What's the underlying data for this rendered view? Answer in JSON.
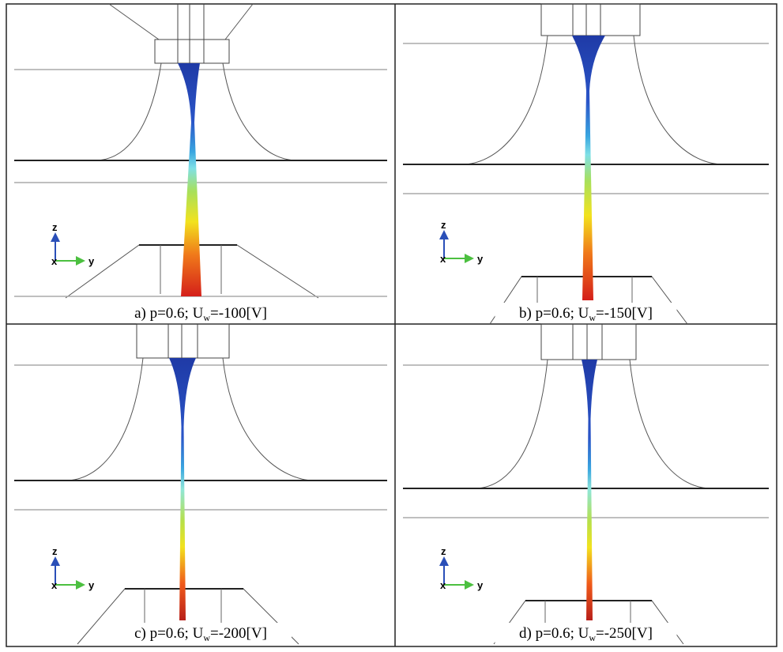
{
  "panels": [
    {
      "caption": {
        "prefix": "a) p=0.6; U",
        "sub": "w",
        "suffix": "=-100[V]"
      },
      "axes": {
        "z": "z",
        "x": "x",
        "y": "y"
      }
    },
    {
      "caption": {
        "prefix": "b) p=0.6; U",
        "sub": "w",
        "suffix": "=-150[V]"
      },
      "axes": {
        "z": "z",
        "x": "x",
        "y": "y"
      }
    },
    {
      "caption": {
        "prefix": "c) p=0.6; U",
        "sub": "w",
        "suffix": "=-200[V]"
      },
      "axes": {
        "z": "z",
        "x": "x",
        "y": "y"
      }
    },
    {
      "caption": {
        "prefix": "d) p=0.6; U",
        "sub": "w",
        "suffix": "=-250[V]"
      },
      "axes": {
        "z": "z",
        "x": "x",
        "y": "y"
      }
    }
  ]
}
